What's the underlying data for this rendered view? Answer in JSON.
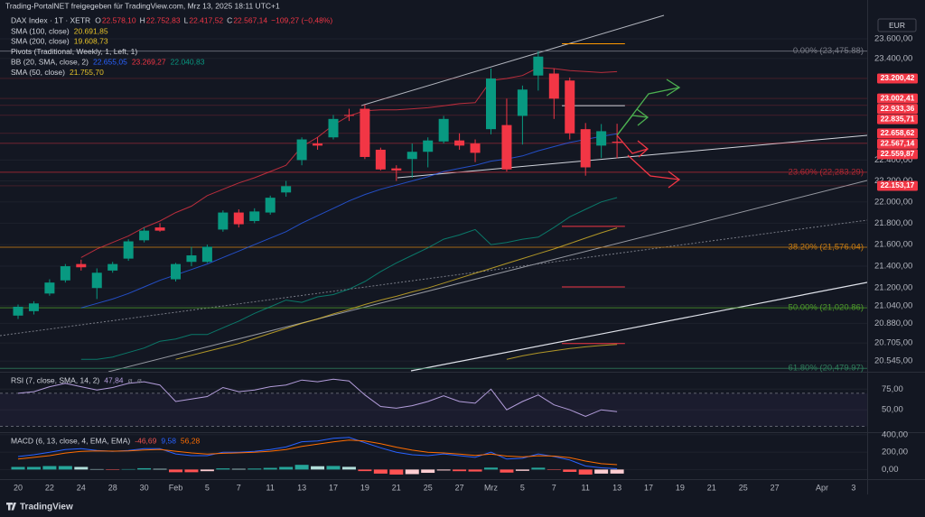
{
  "chart_data": {
    "type": "candlestick",
    "title": "Trading-PortalNET freigegeben für TradingView.com, Mrz 13, 2025 18:11 UTC+1",
    "symbol": "DAX Index · 1T · XETR",
    "ohlc_legend": [
      {
        "key": "O",
        "text": "22.578,10"
      },
      {
        "key": "H",
        "text": "22.752,83"
      },
      {
        "key": "L",
        "text": "22.417,52"
      },
      {
        "key": "C",
        "text": "22.567,14"
      }
    ],
    "change_text": "−109,27 (−0,48%)",
    "currency": "EUR",
    "footer": "TradingView",
    "categories": [
      "20",
      null,
      "22",
      null,
      "24",
      null,
      "28",
      null,
      "30",
      null,
      "Feb",
      null,
      "5",
      null,
      "7",
      null,
      "11",
      null,
      "13",
      null,
      "17",
      null,
      "19",
      null,
      "21",
      null,
      "25",
      null,
      "27",
      null,
      "Mrz",
      null,
      "5",
      null,
      "7",
      null,
      "11",
      null,
      "13"
    ],
    "future_categories": [
      null,
      "17",
      null,
      "19",
      null,
      "21",
      null,
      "25",
      null,
      "27",
      null,
      null,
      "Apr",
      null,
      "3"
    ],
    "open": [
      20950,
      20990,
      21150,
      21270,
      21420,
      21200,
      21360,
      21470,
      21640,
      21760,
      21280,
      21440,
      21440,
      21740,
      21900,
      21820,
      21900,
      22090,
      22400,
      22560,
      22620,
      22840,
      22900,
      22500,
      22320,
      22410,
      22480,
      22580,
      22590,
      22560,
      22700,
      22740,
      22830,
      23230,
      23250,
      23180,
      22700,
      22540,
      22578.1
    ],
    "high": [
      21050,
      21080,
      21280,
      21420,
      21460,
      21380,
      21440,
      21650,
      21760,
      21800,
      21430,
      21580,
      21600,
      21920,
      21930,
      21940,
      22060,
      22200,
      22620,
      22620,
      22840,
      22900,
      22940,
      22520,
      22350,
      22560,
      22620,
      22830,
      22660,
      22600,
      23300,
      23000,
      23130,
      23476,
      23300,
      23210,
      22760,
      22750,
      22752.83
    ],
    "low": [
      20920,
      20960,
      21130,
      21250,
      21360,
      21100,
      21340,
      21450,
      21620,
      21720,
      21260,
      21400,
      21430,
      21720,
      21760,
      21800,
      21880,
      22050,
      22350,
      22500,
      22600,
      22780,
      22410,
      22300,
      22200,
      22230,
      22330,
      22560,
      22500,
      22380,
      22650,
      22290,
      22550,
      23080,
      22800,
      22600,
      22250,
      22420,
      22417.52
    ],
    "close": [
      21030,
      21060,
      21250,
      21400,
      21390,
      21340,
      21420,
      21630,
      21730,
      21730,
      21420,
      21500,
      21580,
      21900,
      21790,
      21910,
      22040,
      22150,
      22600,
      22540,
      22800,
      22830,
      22430,
      22310,
      22300,
      22480,
      22590,
      22800,
      22540,
      22470,
      23200,
      22310,
      23090,
      23420,
      23000,
      22660,
      22330,
      22680,
      22567.14
    ],
    "up_color": "#089981",
    "down_color": "#f23645",
    "log_scale": true,
    "grid": true,
    "ylim": [
      20450,
      23858
    ],
    "yticks": [
      {
        "value": 23600,
        "label": "23.600,00"
      },
      {
        "value": 23400,
        "label": "23.400,00"
      },
      {
        "value": 22400,
        "label": "22.400,00"
      },
      {
        "value": 22200,
        "label": "22.200,00"
      },
      {
        "value": 22000,
        "label": "22.000,00"
      },
      {
        "value": 21800,
        "label": "21.800,00"
      },
      {
        "value": 21600,
        "label": "21.600,00"
      },
      {
        "value": 21400,
        "label": "21.400,00"
      },
      {
        "value": 21200,
        "label": "21.200,00"
      },
      {
        "value": 21040,
        "label": "21.040,00"
      },
      {
        "value": 20880,
        "label": "20.880,00"
      },
      {
        "value": 20705,
        "label": "20.705,00"
      },
      {
        "value": 20545,
        "label": "20.545,00"
      }
    ],
    "price_labels": [
      {
        "value": 23200.42,
        "label": "23.200,42"
      },
      {
        "value": 23002.41,
        "label": "23.002,41"
      },
      {
        "value": 22933.36,
        "label": "22.933,36"
      },
      {
        "value": 22835.71,
        "label": "22.835,71"
      },
      {
        "value": 22658.62,
        "label": "22.658,62"
      },
      {
        "value": 22567.14,
        "label": "22.567,14"
      },
      {
        "value": 22559.87,
        "label": "22.559,87"
      },
      {
        "value": 22153.17,
        "label": "22.153,17"
      }
    ],
    "price_label_color": "#f23645",
    "fib_levels": [
      {
        "value": 23475.88,
        "label": "0.00% (23,475.88)",
        "color": "#787b86"
      },
      {
        "value": 22283.29,
        "label": "23.60% (22,283.29)",
        "color": "#b22833"
      },
      {
        "value": 21576.04,
        "label": "38.20% (21,576.04)",
        "color": "#c77c12"
      },
      {
        "value": 21020.86,
        "label": "50.00% (21,020.86)",
        "color": "#4c9a2a"
      },
      {
        "value": 20479.97,
        "label": "61.80% (20,479.97)",
        "color": "#2f7d5b"
      }
    ],
    "indicators": [
      {
        "label": "SMA (100, close)",
        "lines": [
          {
            "value_text": "20.691,85",
            "color": "#e6c229",
            "values": [
              null,
              null,
              null,
              null,
              null,
              null,
              null,
              null,
              null,
              null,
              null,
              null,
              null,
              null,
              null,
              null,
              null,
              null,
              null,
              null,
              null,
              null,
              null,
              null,
              null,
              null,
              null,
              null,
              null,
              null,
              null,
              20560,
              20590,
              20615,
              20635,
              20655,
              20670,
              20682,
              20691.85
            ]
          }
        ]
      },
      {
        "label": "SMA (200, close)",
        "lines": [
          {
            "value_text": "19.608,73",
            "color": "#e6c229"
          }
        ]
      },
      {
        "label": "Pivots (Traditional, Weekly, 1, Left, 1)",
        "from_index": 35,
        "levels": [
          {
            "value": 23550,
            "color": "#ff9800"
          },
          {
            "value": 22930,
            "color": "#d1d4dc"
          },
          {
            "value": 21770,
            "color": "#f23645"
          },
          {
            "value": 21210,
            "color": "#f23645"
          },
          {
            "value": 20700,
            "color": "#f23645"
          }
        ]
      },
      {
        "label": "BB (20, SMA, close, 2)",
        "lines": [
          {
            "value_text": "22.655,05",
            "color": "#2962ff",
            "values": [
              null,
              null,
              null,
              null,
              21020,
              21060,
              21100,
              21150,
              21210,
              21270,
              21320,
              21370,
              21420,
              21480,
              21540,
              21600,
              21660,
              21720,
              21800,
              21870,
              21940,
              22010,
              22070,
              22120,
              22160,
              22200,
              22240,
              22290,
              22320,
              22350,
              22390,
              22410,
              22440,
              22490,
              22530,
              22570,
              22600,
              22630,
              22655.05
            ]
          },
          {
            "value_text": "23.269,27",
            "color": "#f23645",
            "values": [
              null,
              null,
              null,
              null,
              21480,
              21560,
              21620,
              21680,
              21760,
              21820,
              21900,
              21960,
              22060,
              22120,
              22180,
              22230,
              22290,
              22350,
              22530,
              22620,
              22740,
              22830,
              22880,
              22890,
              22890,
              22900,
              22910,
              22930,
              22950,
              22960,
              23180,
              23200,
              23230,
              23310,
              23300,
              23280,
              23270,
              23260,
              23269.27
            ]
          },
          {
            "value_text": "22.040,83",
            "color": "#089981",
            "values": [
              null,
              null,
              null,
              null,
              20560,
              20560,
              20580,
              20620,
              20660,
              20720,
              20740,
              20780,
              20780,
              20840,
              20900,
              20970,
              21030,
              21090,
              21070,
              21120,
              21140,
              21190,
              21260,
              21350,
              21430,
              21500,
              21570,
              21650,
              21690,
              21740,
              21600,
              21620,
              21650,
              21670,
              21760,
              21860,
              21930,
              22000,
              22040.83
            ]
          }
        ]
      },
      {
        "label": "SMA (50, close)",
        "lines": [
          {
            "value_text": "21.755,70",
            "color": "#e6c229",
            "values": [
              null,
              null,
              null,
              null,
              null,
              null,
              null,
              null,
              null,
              null,
              20560,
              20595,
              20630,
              20665,
              20700,
              20745,
              20790,
              20835,
              20880,
              20920,
              20965,
              21005,
              21050,
              21090,
              21125,
              21165,
              21200,
              21245,
              21290,
              21335,
              21380,
              21425,
              21470,
              21515,
              21560,
              21610,
              21660,
              21710,
              21755.7
            ]
          }
        ]
      }
    ],
    "rsi": {
      "label": "RSI (7, close, SMA, 14, 2)",
      "value_text": "47,84",
      "extras": [
        "ø",
        "ø"
      ],
      "color": "#b39ddb",
      "values": [
        70,
        72,
        78,
        82,
        78,
        74,
        77,
        82,
        84,
        80,
        60,
        63,
        66,
        77,
        72,
        74,
        78,
        80,
        86,
        84,
        87,
        85,
        68,
        54,
        52,
        55,
        60,
        67,
        60,
        58,
        75,
        50,
        60,
        68,
        56,
        50,
        42,
        50,
        47.84
      ],
      "ylim": [
        24,
        95
      ],
      "yticks": [
        {
          "value": 75,
          "label": "75,00"
        },
        {
          "value": 50,
          "label": "50,00"
        }
      ],
      "band_levels": [
        70,
        30
      ]
    },
    "macd": {
      "label": "MACD (6, 13, close, 4, EMA, EMA)",
      "value_texts": [
        {
          "text": "-46,69",
          "color": "#ef5350"
        },
        {
          "text": "9,58",
          "color": "#2962ff"
        },
        {
          "text": "56,28",
          "color": "#ff6d00"
        }
      ],
      "histogram": [
        30,
        30,
        40,
        40,
        30,
        5,
        -2,
        5,
        15,
        8,
        -31,
        -31,
        -19,
        13,
        8,
        11,
        19,
        30,
        54,
        38,
        41,
        31,
        -18,
        -47,
        -58,
        -53,
        -38,
        -11,
        -19,
        -23,
        22,
        -35,
        -15,
        21,
        -5,
        -27,
        -58,
        -47,
        -46.69
      ],
      "macd": [
        150,
        170,
        200,
        230,
        240,
        220,
        210,
        220,
        240,
        240,
        180,
        160,
        160,
        200,
        200,
        210,
        230,
        260,
        320,
        330,
        360,
        370,
        310,
        250,
        200,
        170,
        160,
        180,
        160,
        140,
        200,
        120,
        130,
        180,
        150,
        110,
        40,
        20,
        9.58
      ],
      "signal": [
        120,
        140,
        160,
        190,
        210,
        215,
        212,
        215,
        225,
        232,
        211,
        191,
        179,
        187,
        192,
        199,
        211,
        230,
        266,
        292,
        319,
        339,
        328,
        297,
        258,
        223,
        198,
        191,
        179,
        163,
        178,
        155,
        145,
        159,
        155,
        137,
        98,
        67,
        56.28
      ],
      "macd_color": "#2962ff",
      "signal_color": "#ff6d00",
      "hist_colors": [
        "#26a69a",
        "#b2dfdb",
        "#ff5252",
        "#ffcdd2"
      ],
      "ylim": [
        -100,
        420
      ],
      "yticks": [
        {
          "value": 400,
          "label": "400,00"
        },
        {
          "value": 200,
          "label": "200,00"
        },
        {
          "value": 0,
          "label": "0,00"
        }
      ]
    }
  }
}
